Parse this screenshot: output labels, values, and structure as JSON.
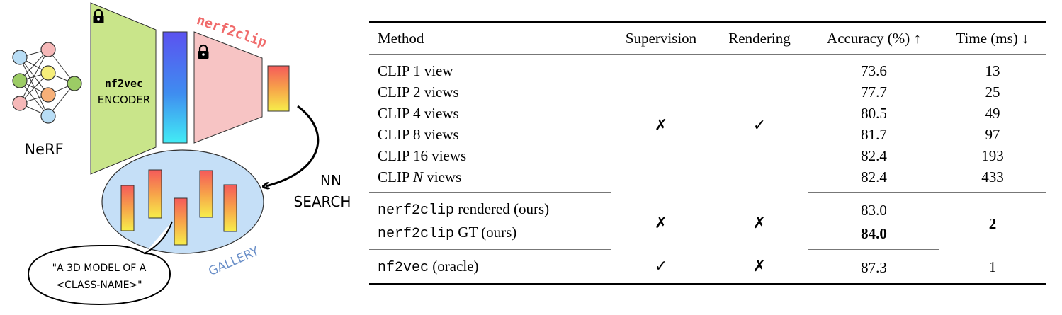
{
  "diagram": {
    "nerf_label": "NeRF",
    "encoder_name": "nf2vec",
    "encoder_word": "ENCODER",
    "model_name": "nerf2clip",
    "search_line1": "NN",
    "search_line2": "SEARCH",
    "gallery_label": "GALLERY",
    "prompt_line1": "\"A 3D MODEL OF A",
    "prompt_line2": "<CLASS-NAME>\"",
    "lock_icon": "lock-icon",
    "colors": {
      "encoder_fill": "#c9e58a",
      "projector_fill": "#f7c4c4",
      "model_name_color": "#f06b6b",
      "gallery_fill": "#c5dff7",
      "gallery_label_color": "#6a8fc8"
    }
  },
  "table": {
    "headers": {
      "method": "Method",
      "supervision": "Supervision",
      "rendering": "Rendering",
      "accuracy": "Accuracy (%) ↑",
      "time": "Time (ms) ↓"
    },
    "group1": {
      "supervision": "✗",
      "rendering": "✓",
      "rows": [
        {
          "method": "CLIP 1 view",
          "accuracy": "73.6",
          "time": "13"
        },
        {
          "method": "CLIP 2 views",
          "accuracy": "77.7",
          "time": "25"
        },
        {
          "method": "CLIP 4 views",
          "accuracy": "80.5",
          "time": "49"
        },
        {
          "method": "CLIP 8 views",
          "accuracy": "81.7",
          "time": "97"
        },
        {
          "method": "CLIP 16 views",
          "accuracy": "82.4",
          "time": "193"
        },
        {
          "method_prefix": "CLIP",
          "method_n": "N",
          "method_suffix": "views",
          "accuracy": "82.4",
          "time": "433"
        }
      ]
    },
    "group2": {
      "supervision": "✗",
      "rendering": "✗",
      "time": "2",
      "rows": [
        {
          "method_code": "nerf2clip",
          "method_rest": "rendered (ours)",
          "accuracy": "83.0"
        },
        {
          "method_code": "nerf2clip",
          "method_rest": "GT (ours)",
          "accuracy": "84.0"
        }
      ]
    },
    "group3": {
      "rows": [
        {
          "method_code": "nf2vec",
          "method_rest": "(oracle)",
          "supervision": "✓",
          "rendering": "✗",
          "accuracy": "87.3",
          "time": "1"
        }
      ]
    }
  }
}
